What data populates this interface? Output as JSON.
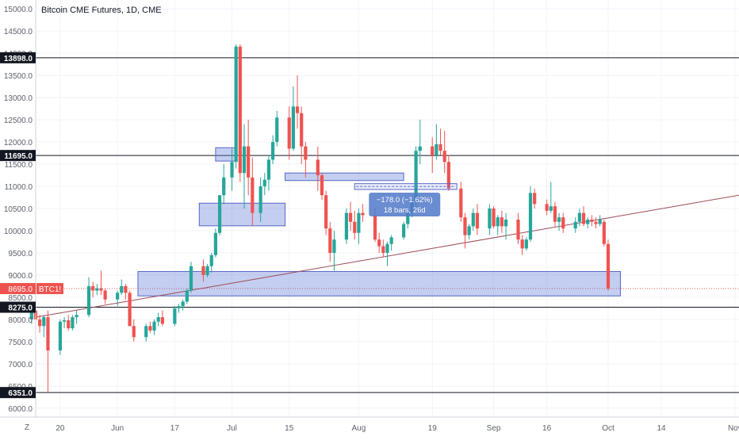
{
  "chart_data": {
    "type": "candlestick",
    "title": "Bitcoin CME Futures, 1D, CME",
    "symbol_badge": "BTC1!",
    "current_price_label": "8695.0",
    "y_ticks": [
      6000,
      6500,
      7000,
      7500,
      8000,
      8500,
      9000,
      9500,
      10000,
      10500,
      11000,
      11500,
      12000,
      12500,
      13000,
      13500,
      14000,
      14500,
      15000
    ],
    "y_tick_labels": [
      "6000.0",
      "6500.0",
      "7000.0",
      "7500.0",
      "8000.0",
      "8500.0",
      "9000.0",
      "9500.0",
      "10000.0",
      "10500.0",
      "11000.0",
      "11500.0",
      "12000.0",
      "12500.0",
      "13000.0",
      "13500.0",
      "14000.0",
      "14500.0",
      "15000.0"
    ],
    "ylim": [
      5800,
      15200
    ],
    "x_ticks": [
      {
        "label": "20",
        "date": "2019-05-20"
      },
      {
        "label": "Jun",
        "date": "2019-06-03"
      },
      {
        "label": "17",
        "date": "2019-06-17"
      },
      {
        "label": "Jul",
        "date": "2019-07-01"
      },
      {
        "label": "15",
        "date": "2019-07-15"
      },
      {
        "label": "Aug",
        "date": "2019-08-01"
      },
      {
        "label": "19",
        "date": "2019-08-19"
      },
      {
        "label": "Sep",
        "date": "2019-09-03"
      },
      {
        "label": "16",
        "date": "2019-09-16"
      },
      {
        "label": "Oct",
        "date": "2019-10-01"
      },
      {
        "label": "14",
        "date": "2019-10-14"
      },
      {
        "label": "Nov",
        "date": "2019-11-01"
      }
    ],
    "xlim": [
      "2019-05-14",
      "2019-11-02"
    ],
    "horizontal_levels": [
      {
        "value": 13898,
        "label": "13898.0"
      },
      {
        "value": 11695,
        "label": "11695.0"
      },
      {
        "value": 8275,
        "label": "8275.0"
      },
      {
        "value": 6351,
        "label": "6351.0"
      }
    ],
    "zones": [
      {
        "x0": "2019-06-27",
        "x1": "2019-07-02",
        "y0": 11570,
        "y1": 11870
      },
      {
        "x0": "2019-06-23",
        "x1": "2019-07-14",
        "y0": 10110,
        "y1": 10620
      },
      {
        "x0": "2019-07-14",
        "x1": "2019-08-12",
        "y0": 11130,
        "y1": 11300
      },
      {
        "x0": "2019-06-08",
        "x1": "2019-10-04",
        "y0": 8530,
        "y1": 9080
      }
    ],
    "trendline": {
      "x0": "2019-05-14",
      "y0": 8050,
      "x1": "2019-11-02",
      "y1": 10800
    },
    "measure_box": {
      "x0": "2019-07-31",
      "x1": "2019-08-25",
      "y0": 10930,
      "y1": 11060
    },
    "measure_tooltip": {
      "line1": "−178.0 (−1.62%)",
      "line2": "18 bars, 26d"
    },
    "candles": [
      [
        "2019-05-13",
        8000,
        8250,
        7900,
        8200
      ],
      [
        "2019-05-14",
        8200,
        8300,
        7900,
        8000
      ],
      [
        "2019-05-15",
        8000,
        8100,
        7700,
        7850
      ],
      [
        "2019-05-16",
        7850,
        8100,
        7600,
        8050
      ],
      [
        "2019-05-17",
        8050,
        8200,
        6351,
        7300
      ],
      [
        "2019-05-20",
        7300,
        8000,
        7200,
        7950
      ],
      [
        "2019-05-21",
        7950,
        8050,
        7800,
        7980
      ],
      [
        "2019-05-22",
        7980,
        8100,
        7750,
        7800
      ],
      [
        "2019-05-23",
        7800,
        8100,
        7750,
        8050
      ],
      [
        "2019-05-24",
        8050,
        8200,
        7900,
        8100
      ],
      [
        "2019-05-27",
        8100,
        8950,
        8050,
        8750
      ],
      [
        "2019-05-28",
        8750,
        8850,
        8500,
        8650
      ],
      [
        "2019-05-29",
        8650,
        8800,
        8550,
        8700
      ],
      [
        "2019-05-30",
        8700,
        9100,
        8550,
        8650
      ],
      [
        "2019-05-31",
        8650,
        8700,
        8350,
        8450
      ],
      [
        "2019-06-03",
        8450,
        8650,
        8300,
        8600
      ],
      [
        "2019-06-04",
        8600,
        8900,
        8550,
        8750
      ],
      [
        "2019-06-05",
        8750,
        8800,
        8450,
        8600
      ],
      [
        "2019-06-06",
        8600,
        8650,
        7850,
        7850
      ],
      [
        "2019-06-07",
        7850,
        8000,
        7500,
        7600
      ],
      [
        "2019-06-10",
        7600,
        7900,
        7500,
        7850
      ],
      [
        "2019-06-11",
        7850,
        7950,
        7700,
        7750
      ],
      [
        "2019-06-12",
        7750,
        8000,
        7650,
        7950
      ],
      [
        "2019-06-13",
        7950,
        8150,
        7850,
        8050
      ],
      [
        "2019-06-14",
        8050,
        8200,
        7850,
        7900
      ],
      [
        "2019-06-17",
        7900,
        8300,
        7850,
        8250
      ],
      [
        "2019-06-18",
        8250,
        8350,
        8150,
        8300
      ],
      [
        "2019-06-19",
        8300,
        8450,
        8200,
        8400
      ],
      [
        "2019-06-20",
        8400,
        8700,
        8350,
        8650
      ],
      [
        "2019-06-21",
        8650,
        9300,
        8600,
        9200
      ],
      [
        "2019-06-24",
        9200,
        9350,
        8850,
        9000
      ],
      [
        "2019-06-25",
        9000,
        9250,
        8950,
        9200
      ],
      [
        "2019-06-26",
        9200,
        9500,
        9050,
        9450
      ],
      [
        "2019-06-27",
        9450,
        10050,
        9400,
        9950
      ],
      [
        "2019-06-28",
        9950,
        10800,
        9900,
        10800
      ],
      [
        "2019-06-29",
        10800,
        11500,
        10600,
        11200
      ],
      [
        "2019-07-01",
        11200,
        11850,
        10900,
        11550
      ],
      [
        "2019-07-02",
        11550,
        14200,
        11400,
        14150
      ],
      [
        "2019-07-03",
        14150,
        14200,
        11100,
        11300
      ],
      [
        "2019-07-04",
        11300,
        12400,
        10500,
        11900
      ],
      [
        "2019-07-05",
        11900,
        12500,
        10800,
        11200
      ],
      [
        "2019-07-06",
        11200,
        11650,
        10100,
        10400
      ],
      [
        "2019-07-08",
        10400,
        11200,
        10200,
        11000
      ],
      [
        "2019-07-09",
        11000,
        11300,
        10800,
        11150
      ],
      [
        "2019-07-10",
        11150,
        11700,
        10900,
        11600
      ],
      [
        "2019-07-11",
        11600,
        12150,
        11500,
        12000
      ],
      [
        "2019-07-12",
        12000,
        12700,
        11900,
        12550
      ],
      [
        "2019-07-15",
        12550,
        12800,
        11600,
        11850
      ],
      [
        "2019-07-16",
        11850,
        13250,
        11800,
        12800
      ],
      [
        "2019-07-17",
        12800,
        13500,
        12300,
        12650
      ],
      [
        "2019-07-18",
        12650,
        12800,
        11500,
        11900
      ],
      [
        "2019-07-19",
        11900,
        12000,
        11200,
        11600
      ],
      [
        "2019-07-22",
        11600,
        11900,
        10900,
        11250
      ],
      [
        "2019-07-23",
        11250,
        11300,
        10700,
        10800
      ],
      [
        "2019-07-24",
        10800,
        10900,
        9900,
        10050
      ],
      [
        "2019-07-25",
        10050,
        10200,
        9300,
        9500
      ],
      [
        "2019-07-26",
        9500,
        10000,
        9100,
        9800
      ],
      [
        "2019-07-29",
        9800,
        10500,
        9700,
        10400
      ],
      [
        "2019-07-30",
        10400,
        10650,
        10000,
        10200
      ],
      [
        "2019-07-31",
        10200,
        10450,
        9800,
        9950
      ],
      [
        "2019-08-01",
        9950,
        10500,
        9700,
        10400
      ],
      [
        "2019-08-02",
        10400,
        10600,
        10200,
        10350
      ],
      [
        "2019-08-05",
        10350,
        10500,
        9750,
        9800
      ],
      [
        "2019-08-06",
        9800,
        9950,
        9500,
        9650
      ],
      [
        "2019-08-07",
        9650,
        9800,
        9400,
        9500
      ],
      [
        "2019-08-08",
        9500,
        9750,
        9200,
        9700
      ],
      [
        "2019-08-09",
        9700,
        9900,
        9550,
        9850
      ],
      [
        "2019-08-12",
        9850,
        10200,
        9800,
        10150
      ],
      [
        "2019-08-13",
        10150,
        10450,
        10050,
        10400
      ],
      [
        "2019-08-14",
        10400,
        10700,
        10300,
        10650
      ],
      [
        "2019-08-15",
        10650,
        11900,
        10500,
        11800
      ],
      [
        "2019-08-16",
        11800,
        12500,
        11500,
        11900
      ],
      [
        "2019-08-19",
        11900,
        12100,
        11300,
        11700
      ],
      [
        "2019-08-20",
        11700,
        12400,
        11600,
        11950
      ],
      [
        "2019-08-21",
        11950,
        12300,
        11700,
        11800
      ],
      [
        "2019-08-22",
        11800,
        12250,
        11300,
        11550
      ],
      [
        "2019-08-23",
        11550,
        11700,
        10900,
        10950
      ],
      [
        "2019-08-26",
        10950,
        11100,
        10200,
        10300
      ],
      [
        "2019-08-27",
        10300,
        10400,
        9600,
        9900
      ],
      [
        "2019-08-28",
        9900,
        10150,
        9800,
        10100
      ],
      [
        "2019-08-29",
        10100,
        10500,
        10000,
        10400
      ],
      [
        "2019-08-30",
        10400,
        10600,
        9900,
        10050
      ],
      [
        "2019-09-02",
        10050,
        10600,
        9900,
        10500
      ],
      [
        "2019-09-03",
        10500,
        10550,
        10050,
        10100
      ],
      [
        "2019-09-04",
        10100,
        10350,
        9900,
        10300
      ],
      [
        "2019-09-05",
        10300,
        10450,
        9950,
        10100
      ],
      [
        "2019-09-06",
        10100,
        10400,
        9800,
        10250
      ],
      [
        "2019-09-09",
        10250,
        10400,
        9700,
        9800
      ],
      [
        "2019-09-10",
        9800,
        9900,
        9450,
        9600
      ],
      [
        "2019-09-11",
        9600,
        9850,
        9550,
        9800
      ],
      [
        "2019-09-12",
        9800,
        11000,
        9750,
        10850
      ],
      [
        "2019-09-13",
        10850,
        10950,
        10500,
        10600
      ],
      [
        "2019-09-16",
        10600,
        10700,
        10350,
        10450
      ],
      [
        "2019-09-17",
        10450,
        11100,
        10400,
        10550
      ],
      [
        "2019-09-18",
        10550,
        10650,
        10100,
        10200
      ],
      [
        "2019-09-19",
        10200,
        10400,
        10000,
        10300
      ],
      [
        "2019-09-20",
        10300,
        10400,
        9950,
        10050
      ],
      [
        "2019-09-23",
        10050,
        10300,
        9950,
        10200
      ],
      [
        "2019-09-24",
        10200,
        10500,
        10100,
        10400
      ],
      [
        "2019-09-25",
        10400,
        10550,
        10100,
        10150
      ],
      [
        "2019-09-26",
        10150,
        10300,
        10050,
        10250
      ],
      [
        "2019-09-27",
        10250,
        10350,
        10100,
        10200
      ],
      [
        "2019-09-28",
        10200,
        10300,
        10050,
        10150
      ],
      [
        "2019-09-29",
        10150,
        10350,
        10100,
        10250
      ],
      [
        "2019-09-30",
        10200,
        10250,
        9650,
        9700
      ],
      [
        "2019-10-01",
        9700,
        9800,
        8650,
        8695
      ]
    ]
  }
}
